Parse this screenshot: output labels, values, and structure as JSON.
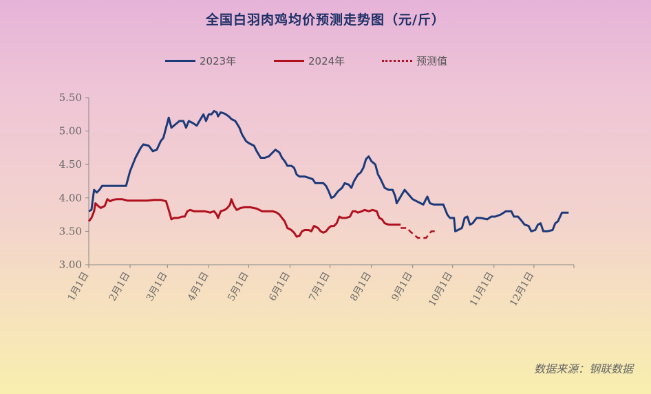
{
  "chart_data": {
    "type": "line",
    "title": "全国白羽肉鸡均价预测走势图（元/斤）",
    "ylim": [
      3.0,
      5.5
    ],
    "yticks": [
      "3.00",
      "3.50",
      "4.00",
      "4.50",
      "5.00",
      "5.50"
    ],
    "xticks": [
      "1月1日",
      "2月1日",
      "3月1日",
      "4月1日",
      "5月1日",
      "6月1日",
      "7月1日",
      "8月1日",
      "9月1日",
      "10月1日",
      "11月1日",
      "12月1日"
    ],
    "x_unit": "day_of_year",
    "series": [
      {
        "name": "2023年",
        "color": "#1c3a7a",
        "style": "solid",
        "points": [
          [
            1,
            3.8
          ],
          [
            3,
            3.82
          ],
          [
            5,
            4.12
          ],
          [
            7,
            4.08
          ],
          [
            9,
            4.12
          ],
          [
            11,
            4.18
          ],
          [
            14,
            4.18
          ],
          [
            20,
            4.18
          ],
          [
            25,
            4.18
          ],
          [
            29,
            4.18
          ],
          [
            32,
            4.4
          ],
          [
            36,
            4.6
          ],
          [
            40,
            4.75
          ],
          [
            42,
            4.8
          ],
          [
            46,
            4.78
          ],
          [
            49,
            4.7
          ],
          [
            52,
            4.72
          ],
          [
            55,
            4.85
          ],
          [
            57,
            4.9
          ],
          [
            59,
            5.05
          ],
          [
            61,
            5.2
          ],
          [
            63,
            5.05
          ],
          [
            66,
            5.1
          ],
          [
            69,
            5.15
          ],
          [
            72,
            5.15
          ],
          [
            74,
            5.05
          ],
          [
            76,
            5.15
          ],
          [
            79,
            5.12
          ],
          [
            82,
            5.08
          ],
          [
            84,
            5.15
          ],
          [
            87,
            5.25
          ],
          [
            89,
            5.15
          ],
          [
            91,
            5.25
          ],
          [
            93,
            5.25
          ],
          [
            95,
            5.3
          ],
          [
            97,
            5.28
          ],
          [
            98,
            5.22
          ],
          [
            100,
            5.28
          ],
          [
            103,
            5.26
          ],
          [
            106,
            5.22
          ],
          [
            108,
            5.18
          ],
          [
            111,
            5.15
          ],
          [
            114,
            5.05
          ],
          [
            116,
            4.95
          ],
          [
            119,
            4.85
          ],
          [
            121,
            4.82
          ],
          [
            123,
            4.8
          ],
          [
            125,
            4.78
          ],
          [
            127,
            4.7
          ],
          [
            130,
            4.6
          ],
          [
            133,
            4.6
          ],
          [
            136,
            4.62
          ],
          [
            139,
            4.68
          ],
          [
            141,
            4.72
          ],
          [
            144,
            4.68
          ],
          [
            146,
            4.6
          ],
          [
            148,
            4.55
          ],
          [
            150,
            4.48
          ],
          [
            153,
            4.48
          ],
          [
            155,
            4.45
          ],
          [
            157,
            4.35
          ],
          [
            159,
            4.32
          ],
          [
            163,
            4.32
          ],
          [
            166,
            4.3
          ],
          [
            169,
            4.28
          ],
          [
            171,
            4.22
          ],
          [
            174,
            4.22
          ],
          [
            177,
            4.22
          ],
          [
            179,
            4.18
          ],
          [
            181,
            4.1
          ],
          [
            183,
            4.0
          ],
          [
            185,
            4.02
          ],
          [
            188,
            4.1
          ],
          [
            191,
            4.15
          ],
          [
            193,
            4.22
          ],
          [
            196,
            4.2
          ],
          [
            198,
            4.15
          ],
          [
            200,
            4.25
          ],
          [
            203,
            4.35
          ],
          [
            205,
            4.38
          ],
          [
            207,
            4.45
          ],
          [
            209,
            4.58
          ],
          [
            211,
            4.62
          ],
          [
            213,
            4.55
          ],
          [
            216,
            4.5
          ],
          [
            218,
            4.35
          ],
          [
            220,
            4.28
          ],
          [
            223,
            4.15
          ],
          [
            226,
            4.12
          ],
          [
            229,
            4.12
          ],
          [
            231,
            4.02
          ],
          [
            232,
            3.92
          ],
          [
            235,
            4.02
          ],
          [
            238,
            4.12
          ],
          [
            241,
            4.05
          ],
          [
            244,
            3.98
          ],
          [
            247,
            3.95
          ],
          [
            250,
            3.92
          ],
          [
            252,
            3.9
          ],
          [
            254,
            3.98
          ],
          [
            255,
            4.02
          ],
          [
            257,
            3.92
          ],
          [
            260,
            3.9
          ],
          [
            263,
            3.9
          ],
          [
            267,
            3.9
          ],
          [
            270,
            3.75
          ],
          [
            272,
            3.7
          ],
          [
            275,
            3.7
          ],
          [
            276,
            3.5
          ],
          [
            278,
            3.52
          ],
          [
            281,
            3.55
          ],
          [
            283,
            3.7
          ],
          [
            285,
            3.72
          ],
          [
            287,
            3.6
          ],
          [
            289,
            3.62
          ],
          [
            292,
            3.7
          ],
          [
            295,
            3.7
          ],
          [
            300,
            3.68
          ],
          [
            303,
            3.72
          ],
          [
            306,
            3.72
          ],
          [
            310,
            3.75
          ],
          [
            314,
            3.8
          ],
          [
            318,
            3.8
          ],
          [
            320,
            3.72
          ],
          [
            323,
            3.72
          ],
          [
            326,
            3.65
          ],
          [
            328,
            3.6
          ],
          [
            331,
            3.58
          ],
          [
            333,
            3.5
          ],
          [
            336,
            3.52
          ],
          [
            338,
            3.6
          ],
          [
            340,
            3.62
          ],
          [
            342,
            3.5
          ],
          [
            345,
            3.5
          ],
          [
            349,
            3.52
          ],
          [
            351,
            3.62
          ],
          [
            353,
            3.65
          ],
          [
            356,
            3.78
          ],
          [
            358,
            3.78
          ],
          [
            361,
            3.78
          ]
        ]
      },
      {
        "name": "2024年",
        "color": "#b0101e",
        "style": "solid",
        "points": [
          [
            1,
            3.65
          ],
          [
            3,
            3.7
          ],
          [
            5,
            3.8
          ],
          [
            6,
            3.92
          ],
          [
            8,
            3.88
          ],
          [
            10,
            3.85
          ],
          [
            13,
            3.88
          ],
          [
            15,
            3.98
          ],
          [
            17,
            3.95
          ],
          [
            19,
            3.97
          ],
          [
            22,
            3.98
          ],
          [
            26,
            3.98
          ],
          [
            30,
            3.96
          ],
          [
            35,
            3.96
          ],
          [
            40,
            3.96
          ],
          [
            45,
            3.96
          ],
          [
            50,
            3.97
          ],
          [
            55,
            3.97
          ],
          [
            59,
            3.95
          ],
          [
            61,
            3.82
          ],
          [
            63,
            3.68
          ],
          [
            65,
            3.7
          ],
          [
            68,
            3.7
          ],
          [
            71,
            3.72
          ],
          [
            73,
            3.72
          ],
          [
            75,
            3.8
          ],
          [
            77,
            3.82
          ],
          [
            80,
            3.8
          ],
          [
            84,
            3.8
          ],
          [
            88,
            3.8
          ],
          [
            92,
            3.78
          ],
          [
            95,
            3.8
          ],
          [
            97,
            3.75
          ],
          [
            98,
            3.7
          ],
          [
            100,
            3.8
          ],
          [
            103,
            3.82
          ],
          [
            105,
            3.85
          ],
          [
            107,
            3.9
          ],
          [
            108,
            3.98
          ],
          [
            110,
            3.88
          ],
          [
            112,
            3.82
          ],
          [
            115,
            3.85
          ],
          [
            118,
            3.86
          ],
          [
            122,
            3.86
          ],
          [
            127,
            3.84
          ],
          [
            131,
            3.8
          ],
          [
            135,
            3.8
          ],
          [
            139,
            3.8
          ],
          [
            142,
            3.78
          ],
          [
            144,
            3.75
          ],
          [
            146,
            3.7
          ],
          [
            148,
            3.65
          ],
          [
            150,
            3.55
          ],
          [
            153,
            3.52
          ],
          [
            155,
            3.48
          ],
          [
            157,
            3.42
          ],
          [
            159,
            3.43
          ],
          [
            161,
            3.5
          ],
          [
            163,
            3.52
          ],
          [
            166,
            3.52
          ],
          [
            168,
            3.5
          ],
          [
            170,
            3.58
          ],
          [
            173,
            3.55
          ],
          [
            175,
            3.5
          ],
          [
            177,
            3.48
          ],
          [
            179,
            3.5
          ],
          [
            181,
            3.55
          ],
          [
            183,
            3.58
          ],
          [
            185,
            3.58
          ],
          [
            187,
            3.62
          ],
          [
            189,
            3.72
          ],
          [
            191,
            3.7
          ],
          [
            194,
            3.7
          ],
          [
            197,
            3.72
          ],
          [
            199,
            3.8
          ],
          [
            201,
            3.8
          ],
          [
            203,
            3.78
          ],
          [
            206,
            3.8
          ],
          [
            208,
            3.82
          ],
          [
            211,
            3.8
          ],
          [
            214,
            3.82
          ],
          [
            217,
            3.8
          ],
          [
            219,
            3.7
          ],
          [
            221,
            3.68
          ],
          [
            223,
            3.62
          ],
          [
            226,
            3.6
          ],
          [
            230,
            3.6
          ],
          [
            235,
            3.6
          ]
        ]
      },
      {
        "name": "预测值",
        "color": "#b0101e",
        "style": "dashed",
        "points": [
          [
            235,
            3.55
          ],
          [
            240,
            3.55
          ],
          [
            242,
            3.5
          ],
          [
            245,
            3.45
          ],
          [
            248,
            3.4
          ],
          [
            251,
            3.4
          ],
          [
            254,
            3.4
          ],
          [
            256,
            3.45
          ],
          [
            258,
            3.5
          ],
          [
            262,
            3.5
          ]
        ]
      }
    ],
    "grid": false,
    "legend_placement": "top"
  },
  "source": "数据来源：钢联数据"
}
